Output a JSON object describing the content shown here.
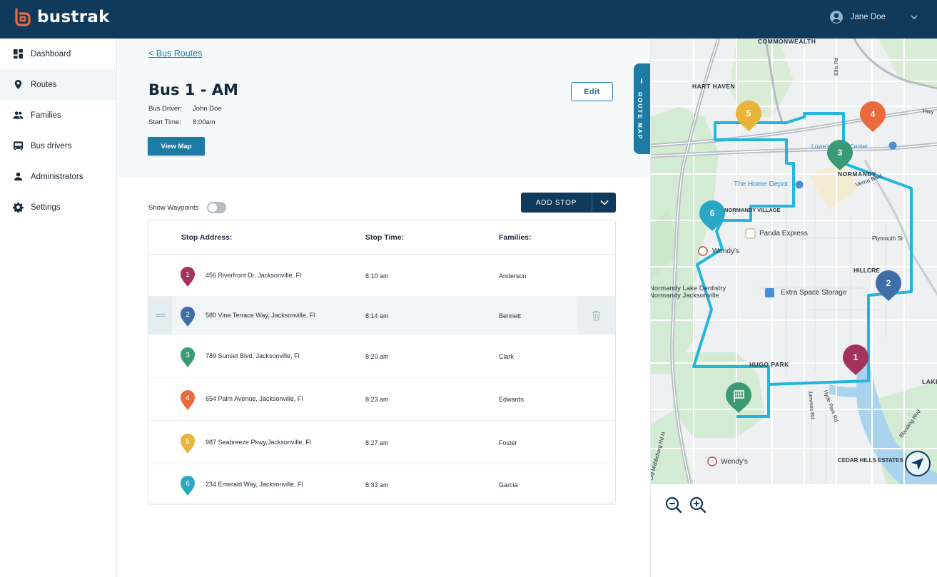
{
  "app": {
    "name": "bustrak"
  },
  "user": {
    "name": "Jane Doe"
  },
  "sidebar": {
    "items": [
      {
        "label": "Dashboard",
        "icon": "dashboard-icon",
        "active": false
      },
      {
        "label": "Routes",
        "icon": "location-pin-icon",
        "active": true
      },
      {
        "label": "Families",
        "icon": "people-icon",
        "active": false
      },
      {
        "label": "Bus drivers",
        "icon": "bus-icon",
        "active": false
      },
      {
        "label": "Administrators",
        "icon": "person-icon",
        "active": false
      },
      {
        "label": "Settings",
        "icon": "gear-icon",
        "active": false
      }
    ]
  },
  "route": {
    "back_label": "< Bus Routes",
    "title": "Bus 1 - AM",
    "driver_label": "Bus Driver:",
    "driver": "John Doe",
    "start_label": "Start Time:",
    "start_time": "8:00am",
    "edit_label": "Edit",
    "view_map_label": "View Map"
  },
  "controls": {
    "waypoints_label": "Show Waypoints",
    "waypoints_on": false,
    "add_stop_label": "ADD STOP"
  },
  "table": {
    "headers": {
      "address": "Stop Address:",
      "time": "Stop Time:",
      "families": "Families:"
    },
    "rows": [
      {
        "num": "1",
        "address": "456 Riverfront Dr, Jacksonville, Fl",
        "time": "8:10 am",
        "families": "Anderson",
        "color": "#a3325f"
      },
      {
        "num": "2",
        "address": "580  Vine Terrace Way, Jacksonville, Fl",
        "time": "8:14 am",
        "families": "Bennett",
        "color": "#3f6da5",
        "selected": true
      },
      {
        "num": "3",
        "address": "789 Sunset Blvd, Jacksonville, Fl",
        "time": "8:20 am",
        "families": "Clark",
        "color": "#3b9a72"
      },
      {
        "num": "4",
        "address": "654 Palm Avenue, Jacksonville, Fl",
        "time": "8:23 am",
        "families": "Edwards",
        "color": "#ea6a3d"
      },
      {
        "num": "5",
        "address": "987 Seabreeze Pkwy,Jacksonville, Fl",
        "time": "8:27 am",
        "families": "Foster",
        "color": "#e8b43a"
      },
      {
        "num": "6",
        "address": "234 Emerald Way, Jacksonville, Fl",
        "time": "8:33 am",
        "families": "Garcia",
        "color": "#2aa7c5"
      }
    ]
  },
  "map": {
    "tab_label": "ROUTE MAP",
    "route_color": "#22b5dd",
    "labels": {
      "commonwealth": "COMMONWEALTH",
      "hart_haven": "HART HAVEN",
      "normandy": "NORMANDY",
      "lowes": "Lowe's Home Center",
      "home_depot": "The Home Depot",
      "verna": "Verna Blvd",
      "normandy_village": "NORMANDY VILLAGE",
      "panda": "Panda Express",
      "wendys1": "Wendy's",
      "plymouth": "Plymouth St",
      "hillcrest": "HILLCRE",
      "dentistry": "Normandy Lake Dentistry",
      "dentistry2": "Normandy Jacksonville",
      "extra_space": "Extra Space Storage",
      "park": "HUGO PARK",
      "lake": "LAKE",
      "jammes": "Jammes Rd",
      "hyde_park": "Hyde Park Rd",
      "wendys2": "Wendy's",
      "cedar_hills": "CEDAR HILLS ESTATES",
      "blanding": "Blanding Blvd",
      "middleburg": "Old Middleburg Rd N",
      "ellis": "Ellis Rd",
      "hwy": "Hwy"
    },
    "markers": [
      {
        "num": "5",
        "color": "#e8b43a"
      },
      {
        "num": "4",
        "color": "#ea6a3d"
      },
      {
        "num": "3",
        "color": "#3b9a72"
      },
      {
        "num": "6",
        "color": "#2aa7c5"
      },
      {
        "num": "2",
        "color": "#3f6da5"
      },
      {
        "num": "1",
        "color": "#a3325f"
      }
    ],
    "start_marker_color": "#3b9a72"
  }
}
